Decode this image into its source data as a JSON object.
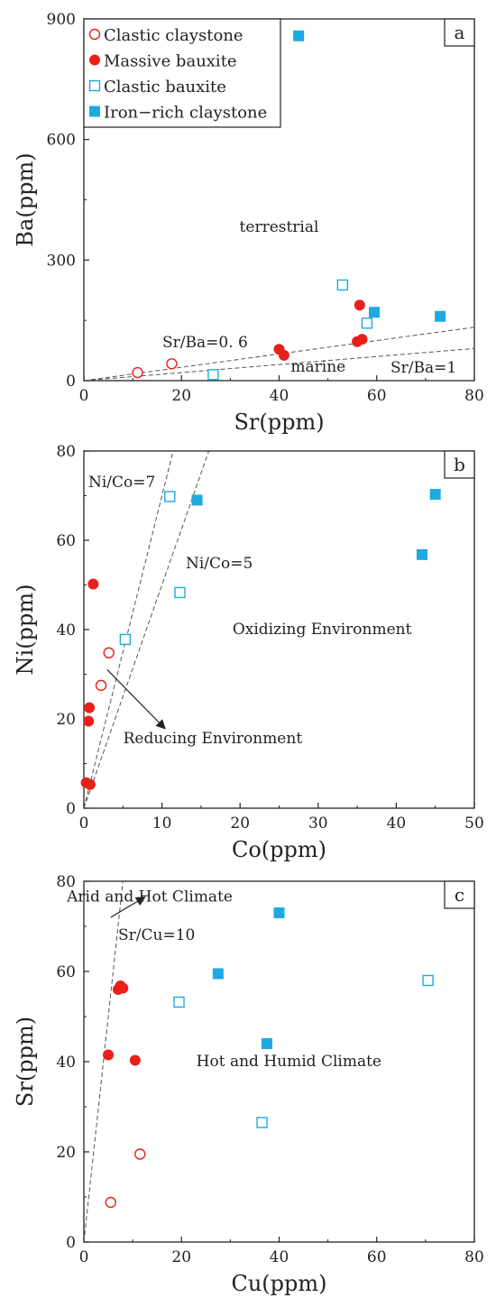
{
  "chart_data": [
    {
      "panel": "a",
      "type": "scatter",
      "xlabel": "Sr(ppm)",
      "ylabel": "Ba(ppm)",
      "xlim": [
        0,
        80
      ],
      "ylim": [
        0,
        900
      ],
      "xticks": [
        0,
        20,
        40,
        60,
        80
      ],
      "yticks": [
        0,
        300,
        600,
        900
      ],
      "legend_position": "top-left",
      "legend": [
        {
          "label": "Clastic claystone",
          "marker": "circle-open",
          "color": "#e8201a"
        },
        {
          "label": "Massive bauxite",
          "marker": "circle-filled",
          "color": "#e8201a"
        },
        {
          "label": "Clastic bauxite",
          "marker": "square-open",
          "color": "#1ea9e1"
        },
        {
          "label": "Iron−rich claystone",
          "marker": "square-filled",
          "color": "#1ea9e1"
        }
      ],
      "series": [
        {
          "marker": "circle-open",
          "color": "#e8201a",
          "points": [
            [
              11,
              20
            ],
            [
              18,
              42
            ]
          ]
        },
        {
          "marker": "circle-filled",
          "color": "#e8201a",
          "points": [
            [
              40,
              78
            ],
            [
              41,
              63
            ],
            [
              56,
              97
            ],
            [
              56.5,
              188
            ],
            [
              57,
              103
            ]
          ]
        },
        {
          "marker": "square-open",
          "color": "#1ea9e1",
          "points": [
            [
              26.5,
              15
            ],
            [
              53,
              238
            ],
            [
              58,
              143
            ]
          ]
        },
        {
          "marker": "square-filled",
          "color": "#1ea9e1",
          "points": [
            [
              44,
              858
            ],
            [
              59.5,
              170
            ],
            [
              73,
              160
            ]
          ]
        }
      ],
      "lines": [
        {
          "label": "Sr/Ba=0. 6",
          "slope": 1.667,
          "to": [
            80,
            133
          ]
        },
        {
          "label": "Sr/Ba=1",
          "slope": 1,
          "to": [
            80,
            80
          ]
        }
      ],
      "annotations": [
        {
          "text": "terrestrial",
          "x": 40,
          "y": 370
        },
        {
          "text": "marine",
          "x": 48,
          "y": 22
        },
        {
          "text": "a",
          "position": "corner-top-right"
        }
      ]
    },
    {
      "panel": "b",
      "type": "scatter",
      "xlabel": "Co(ppm)",
      "ylabel": "Ni(ppm)",
      "xlim": [
        0,
        50
      ],
      "ylim": [
        0,
        80
      ],
      "xticks": [
        0,
        10,
        20,
        30,
        40,
        50
      ],
      "yticks": [
        0,
        20,
        40,
        60,
        80
      ],
      "series": [
        {
          "marker": "circle-open",
          "color": "#e8201a",
          "points": [
            [
              2.2,
              27.5
            ],
            [
              3.2,
              34.8
            ]
          ]
        },
        {
          "marker": "circle-filled",
          "color": "#e8201a",
          "points": [
            [
              0.3,
              5.7
            ],
            [
              0.8,
              5.3
            ],
            [
              0.6,
              19.5
            ],
            [
              0.7,
              22.5
            ],
            [
              1.2,
              50.2
            ]
          ]
        },
        {
          "marker": "square-open",
          "color": "#1ea9e1",
          "points": [
            [
              5.3,
              37.8
            ],
            [
              11,
              69.8
            ],
            [
              12.3,
              48.3
            ]
          ]
        },
        {
          "marker": "square-filled",
          "color": "#1ea9e1",
          "points": [
            [
              14.5,
              69
            ],
            [
              43.3,
              56.8
            ],
            [
              45,
              70.3
            ]
          ]
        }
      ],
      "lines": [
        {
          "label": "Ni/Co=7",
          "slope": 7,
          "to": [
            11.43,
            80
          ]
        },
        {
          "label": "Ni/Co=5",
          "slope": 5,
          "to": [
            16,
            80
          ]
        }
      ],
      "annotations": [
        {
          "text": "Oxidizing Environment",
          "x": 30.5,
          "y": 39
        },
        {
          "text": "Reducing Environment",
          "x": 16.5,
          "y": 14.5
        },
        {
          "text": "b",
          "position": "corner-top-right"
        }
      ],
      "arrow": {
        "from": [
          3,
          31
        ],
        "to": [
          10.4,
          17.8
        ]
      }
    },
    {
      "panel": "c",
      "type": "scatter",
      "xlabel": "Cu(ppm)",
      "ylabel": "Sr(ppm)",
      "xlim": [
        0,
        80
      ],
      "ylim": [
        0,
        80
      ],
      "xticks": [
        0,
        20,
        40,
        60,
        80
      ],
      "yticks": [
        0,
        20,
        40,
        60,
        80
      ],
      "series": [
        {
          "marker": "circle-open",
          "color": "#e8201a",
          "points": [
            [
              5.5,
              8.8
            ],
            [
              11.5,
              19.5
            ]
          ]
        },
        {
          "marker": "circle-filled",
          "color": "#e8201a",
          "points": [
            [
              5,
              41.5
            ],
            [
              10.5,
              40.3
            ],
            [
              7,
              56
            ],
            [
              7.5,
              56.8
            ],
            [
              8,
              56.3
            ]
          ]
        },
        {
          "marker": "square-open",
          "color": "#1ea9e1",
          "points": [
            [
              19.5,
              53.2
            ],
            [
              36.5,
              26.5
            ],
            [
              70.5,
              58
            ]
          ]
        },
        {
          "marker": "square-filled",
          "color": "#1ea9e1",
          "points": [
            [
              27.5,
              59.5
            ],
            [
              37.5,
              44
            ],
            [
              40,
              73
            ]
          ]
        }
      ],
      "lines": [
        {
          "label": "Sr/Cu=10",
          "slope": 10,
          "to": [
            8,
            80
          ]
        }
      ],
      "annotations": [
        {
          "text": "Arid and Hot Climate",
          "x": 13.5,
          "y": 75.5
        },
        {
          "text": "Hot and Humid Climate",
          "x": 42,
          "y": 39
        },
        {
          "text": "c",
          "position": "corner-top-right"
        }
      ],
      "arrow": {
        "from": [
          5.5,
          72
        ],
        "to": [
          12.5,
          76.5
        ]
      }
    }
  ]
}
